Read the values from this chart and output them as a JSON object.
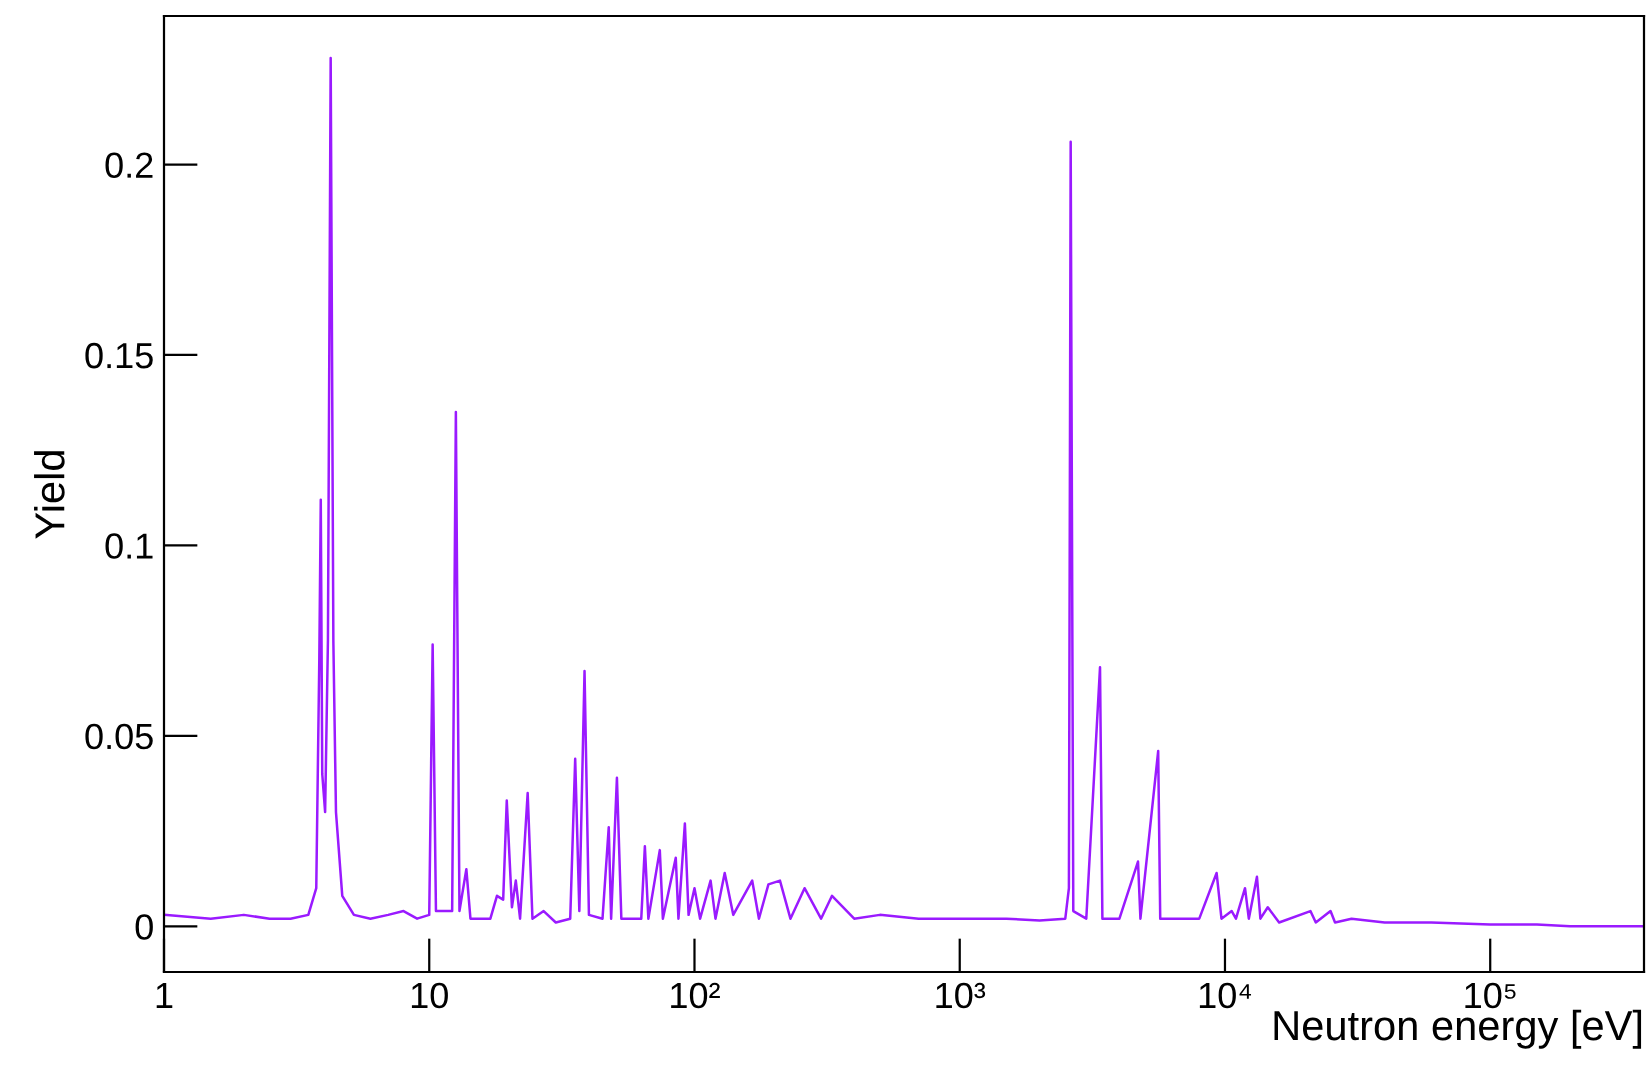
{
  "chart_data": {
    "type": "line",
    "xlabel": "Neutron energy [eV]",
    "ylabel": "Yield",
    "log": "x",
    "grid": false,
    "legend": false,
    "marker": "none",
    "line_style": "solid",
    "xlim": [
      1,
      380000
    ],
    "xticks": [
      1,
      10,
      {
        "value": 100,
        "label": "10²"
      },
      {
        "value": 1000,
        "label": "10³"
      },
      {
        "value": 10000,
        "label": "10⁴"
      },
      {
        "value": 100000,
        "label": "10⁵"
      }
    ],
    "ylim": [
      -0.012,
      0.239
    ],
    "yticks": [
      0,
      0.05,
      0.1,
      0.15,
      0.2
    ],
    "series": [
      {
        "color": "#9a1aff",
        "x": [
          1,
          1.5,
          2,
          2.5,
          3,
          3.5,
          3.75,
          3.85,
          3.9,
          3.95,
          4.05,
          4.15,
          4.25,
          4.35,
          4.45,
          4.7,
          5.2,
          6,
          7,
          8,
          9,
          10,
          10.3,
          10.6,
          12.2,
          12.6,
          13,
          13.8,
          14.3,
          17,
          18,
          19,
          19.6,
          20.5,
          21.2,
          22,
          23.5,
          24.5,
          27,
          30,
          34,
          35.5,
          36.8,
          38.5,
          40,
          45,
          47.5,
          48.5,
          51,
          53,
          63,
          65,
          67,
          74,
          76,
          85,
          87,
          92,
          95,
          100,
          105,
          115,
          120,
          130,
          140,
          165,
          175,
          190,
          210,
          230,
          260,
          300,
          330,
          400,
          500,
          700,
          1000,
          1500,
          2000,
          2500,
          2580,
          2620,
          2680,
          3000,
          3380,
          3450,
          4000,
          4700,
          4800,
          5600,
          5700,
          8000,
          9300,
          9700,
          10600,
          11000,
          11900,
          12300,
          13200,
          13600,
          14500,
          16000,
          21000,
          22000,
          25000,
          26000,
          30000,
          40000,
          60000,
          100000,
          150000,
          200000,
          380000
        ],
        "values": [
          0.003,
          0.002,
          0.003,
          0.002,
          0.002,
          0.003,
          0.01,
          0.07,
          0.112,
          0.04,
          0.03,
          0.075,
          0.228,
          0.075,
          0.03,
          0.008,
          0.003,
          0.002,
          0.003,
          0.004,
          0.002,
          0.003,
          0.074,
          0.004,
          0.004,
          0.135,
          0.004,
          0.015,
          0.002,
          0.002,
          0.008,
          0.007,
          0.033,
          0.005,
          0.012,
          0.002,
          0.035,
          0.002,
          0.004,
          0.001,
          0.002,
          0.044,
          0.004,
          0.067,
          0.003,
          0.002,
          0.026,
          0.002,
          0.039,
          0.002,
          0.002,
          0.021,
          0.002,
          0.02,
          0.002,
          0.018,
          0.002,
          0.027,
          0.003,
          0.01,
          0.002,
          0.012,
          0.002,
          0.014,
          0.003,
          0.012,
          0.002,
          0.011,
          0.012,
          0.002,
          0.01,
          0.002,
          0.008,
          0.002,
          0.003,
          0.002,
          0.002,
          0.002,
          0.0015,
          0.002,
          0.01,
          0.206,
          0.004,
          0.002,
          0.068,
          0.002,
          0.002,
          0.017,
          0.002,
          0.046,
          0.002,
          0.002,
          0.014,
          0.002,
          0.004,
          0.002,
          0.01,
          0.002,
          0.013,
          0.002,
          0.005,
          0.001,
          0.004,
          0.001,
          0.004,
          0.001,
          0.002,
          0.001,
          0.001,
          0.0005,
          0.0005,
          0,
          0
        ]
      }
    ]
  }
}
